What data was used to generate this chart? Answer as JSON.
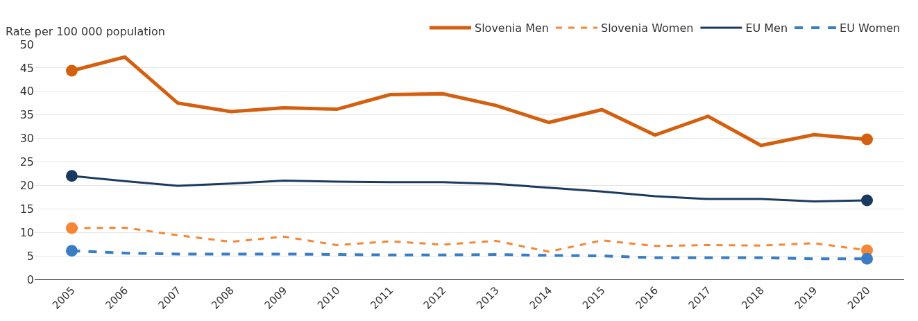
{
  "chart_data": {
    "type": "line",
    "ylabel": "Rate per 100 000 population",
    "categories": [
      "2005",
      "2006",
      "2007",
      "2008",
      "2009",
      "2010",
      "2011",
      "2012",
      "2013",
      "2014",
      "2015",
      "2016",
      "2017",
      "2018",
      "2019",
      "2020"
    ],
    "series": [
      {
        "name": "Slovenia Men",
        "color": "#d45f0e",
        "line_style": "solid",
        "values": [
          44.4,
          47.3,
          37.5,
          35.7,
          36.5,
          36.2,
          39.3,
          39.5,
          37.0,
          33.4,
          36.1,
          30.7,
          34.7,
          28.5,
          30.8,
          29.8
        ]
      },
      {
        "name": "Slovenia Women",
        "color": "#f58634",
        "line_style": "dashed",
        "values": [
          10.9,
          11.0,
          9.4,
          8.0,
          9.1,
          7.3,
          8.1,
          7.4,
          8.2,
          5.9,
          8.3,
          7.1,
          7.3,
          7.2,
          7.7,
          6.2
        ]
      },
      {
        "name": "EU Men",
        "color": "#1b3a5f",
        "line_style": "solid",
        "values": [
          22.0,
          20.9,
          19.9,
          20.4,
          21.0,
          20.8,
          20.7,
          20.7,
          20.3,
          19.5,
          18.7,
          17.7,
          17.1,
          17.1,
          16.6,
          16.8
        ]
      },
      {
        "name": "EU Women",
        "color": "#3a7dc4",
        "line_style": "dashed",
        "values": [
          6.1,
          5.6,
          5.4,
          5.4,
          5.4,
          5.3,
          5.2,
          5.2,
          5.3,
          5.1,
          5.0,
          4.6,
          4.6,
          4.6,
          4.4,
          4.4
        ]
      }
    ],
    "ylim": [
      0,
      50
    ],
    "yticks": [
      0,
      5,
      10,
      15,
      20,
      25,
      30,
      35,
      40,
      45,
      50
    ],
    "grid": "y",
    "legend": "top"
  }
}
